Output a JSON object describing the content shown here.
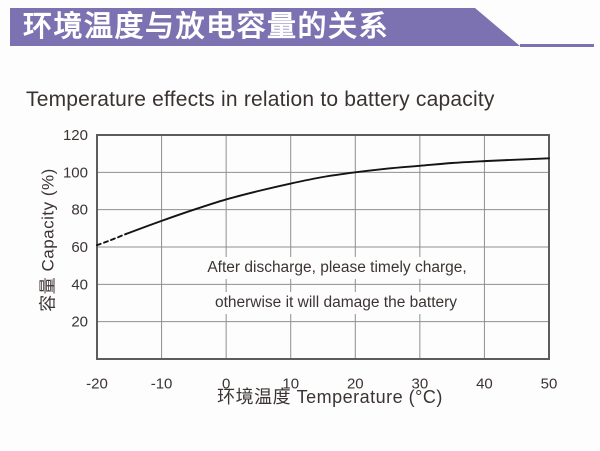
{
  "banner": {
    "title": "环境温度与放电容量的关系",
    "color": "#7c72b2"
  },
  "page_title": "Temperature effects in relation to battery capacity",
  "chart_data": {
    "type": "line",
    "title": "Temperature effects in relation to battery capacity",
    "xlabel": "环境温度 Temperature (°C)",
    "ylabel": "容量 Capacity (%)",
    "xlim": [
      -20,
      50
    ],
    "ylim": [
      0,
      120
    ],
    "x_ticks": [
      -20,
      -10,
      0,
      10,
      20,
      30,
      40,
      50
    ],
    "y_ticks": [
      20,
      40,
      60,
      80,
      100,
      120
    ],
    "grid": true,
    "legend_position": "none",
    "line_color": "#141414",
    "grid_color": "#8f8f8f",
    "border_color": "#5c5c5c",
    "series": [
      {
        "name": "capacity-extrapolated",
        "style": "dashed",
        "points": [
          [
            -20,
            61
          ],
          [
            -18,
            63.5
          ],
          [
            -15.5,
            67
          ]
        ]
      },
      {
        "name": "capacity",
        "style": "solid",
        "points": [
          [
            -15.5,
            67
          ],
          [
            -10,
            74
          ],
          [
            -5,
            80
          ],
          [
            0,
            85.5
          ],
          [
            5,
            90
          ],
          [
            10,
            94
          ],
          [
            15,
            97.5
          ],
          [
            20,
            100
          ],
          [
            25,
            102
          ],
          [
            30,
            103.5
          ],
          [
            35,
            105
          ],
          [
            40,
            106
          ],
          [
            45,
            106.8
          ],
          [
            50,
            107.5
          ]
        ]
      }
    ],
    "annotation": {
      "line1": "After discharge, please timely charge,",
      "line2": "otherwise it will damage the battery"
    }
  }
}
